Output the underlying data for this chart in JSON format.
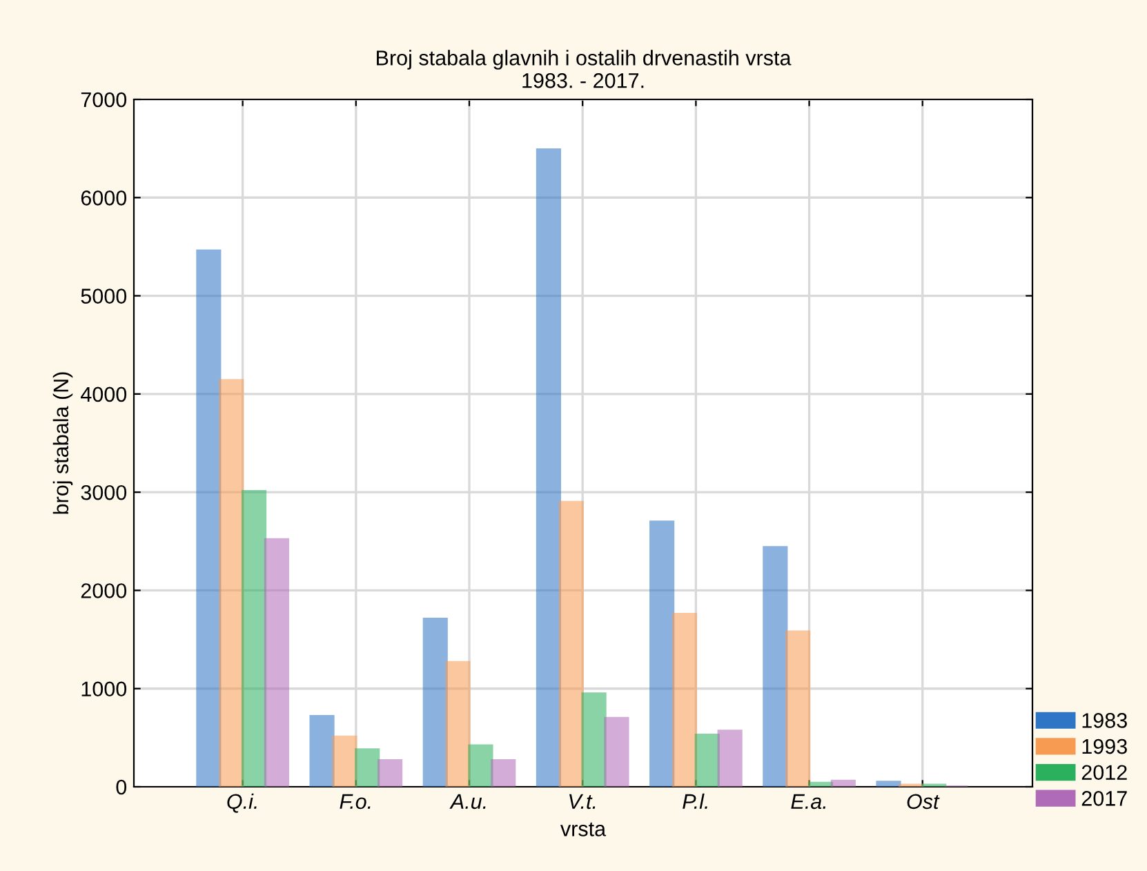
{
  "chart_data": {
    "type": "bar",
    "title": "Broj stabala glavnih i ostalih drvenastih vrsta\n1983. - 2017.",
    "xlabel": "vrsta",
    "ylabel": "broj stabala (N)",
    "categories": [
      "Q.i.",
      "F.o.",
      "A.u.",
      "V.t.",
      "P.l.",
      "E.a.",
      "Ost"
    ],
    "series": [
      {
        "name": "1983",
        "color": "#2e75c6",
        "values": [
          5460,
          720,
          1710,
          6490,
          2700,
          2440,
          50
        ]
      },
      {
        "name": "1993",
        "color": "#f79a52",
        "values": [
          4140,
          510,
          1270,
          2900,
          1760,
          1580,
          20
        ]
      },
      {
        "name": "2012",
        "color": "#2bb05e",
        "values": [
          3010,
          380,
          420,
          950,
          530,
          40,
          20
        ]
      },
      {
        "name": "2017",
        "color": "#b06bb8",
        "values": [
          2520,
          270,
          270,
          700,
          570,
          60,
          0
        ]
      }
    ],
    "ylim": [
      0,
      7000
    ],
    "yticks": [
      0,
      1000,
      2000,
      3000,
      4000,
      5000,
      6000,
      7000
    ],
    "grid": true,
    "legend": "bottom right"
  }
}
